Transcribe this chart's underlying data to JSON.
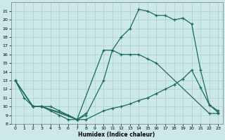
{
  "background_color": "#cce8e8",
  "grid_color": "#aacfcf",
  "line_color": "#1a6b5a",
  "xlabel": "Humidex (Indice chaleur)",
  "xlim": [
    -0.5,
    23.5
  ],
  "ylim": [
    8,
    22
  ],
  "xticks": [
    0,
    1,
    2,
    3,
    4,
    5,
    6,
    7,
    8,
    9,
    10,
    11,
    12,
    13,
    14,
    15,
    16,
    17,
    18,
    19,
    20,
    21,
    22,
    23
  ],
  "yticks": [
    8,
    9,
    10,
    11,
    12,
    13,
    14,
    15,
    16,
    17,
    18,
    19,
    20,
    21
  ],
  "line1_x": [
    0,
    1,
    2,
    3,
    4,
    5,
    6,
    7,
    8
  ],
  "line1_y": [
    13,
    11,
    10,
    10,
    9.5,
    9,
    8.5,
    8.5,
    9.2
  ],
  "line2_x": [
    0,
    2,
    3,
    4,
    5,
    6,
    7,
    8,
    10,
    11,
    12,
    13,
    14,
    15,
    16,
    17,
    18,
    19,
    20,
    21,
    22,
    23
  ],
  "line2_y": [
    13,
    10,
    10,
    10,
    9.5,
    9,
    8.5,
    8.5,
    9.5,
    9.8,
    10,
    10.3,
    10.7,
    11,
    11.5,
    12,
    12.5,
    13.2,
    14.2,
    12.2,
    10.2,
    9.3
  ],
  "line3_x": [
    0,
    2,
    3,
    7,
    8,
    10,
    11,
    12,
    13,
    14,
    15,
    16,
    17,
    18,
    19,
    20,
    21,
    22,
    23
  ],
  "line3_y": [
    13,
    10,
    10,
    8.5,
    9,
    13,
    16.5,
    18,
    19,
    21.2,
    21,
    20.5,
    20.5,
    20,
    20.2,
    19.5,
    14.2,
    10.2,
    9.5
  ],
  "line4_x": [
    0,
    2,
    3,
    6,
    7,
    10,
    11,
    12,
    13,
    14,
    15,
    16,
    22,
    23
  ],
  "line4_y": [
    13,
    10,
    10,
    9,
    8.5,
    16.5,
    16.5,
    16,
    16,
    16,
    15.5,
    15,
    9.2,
    9.2
  ]
}
